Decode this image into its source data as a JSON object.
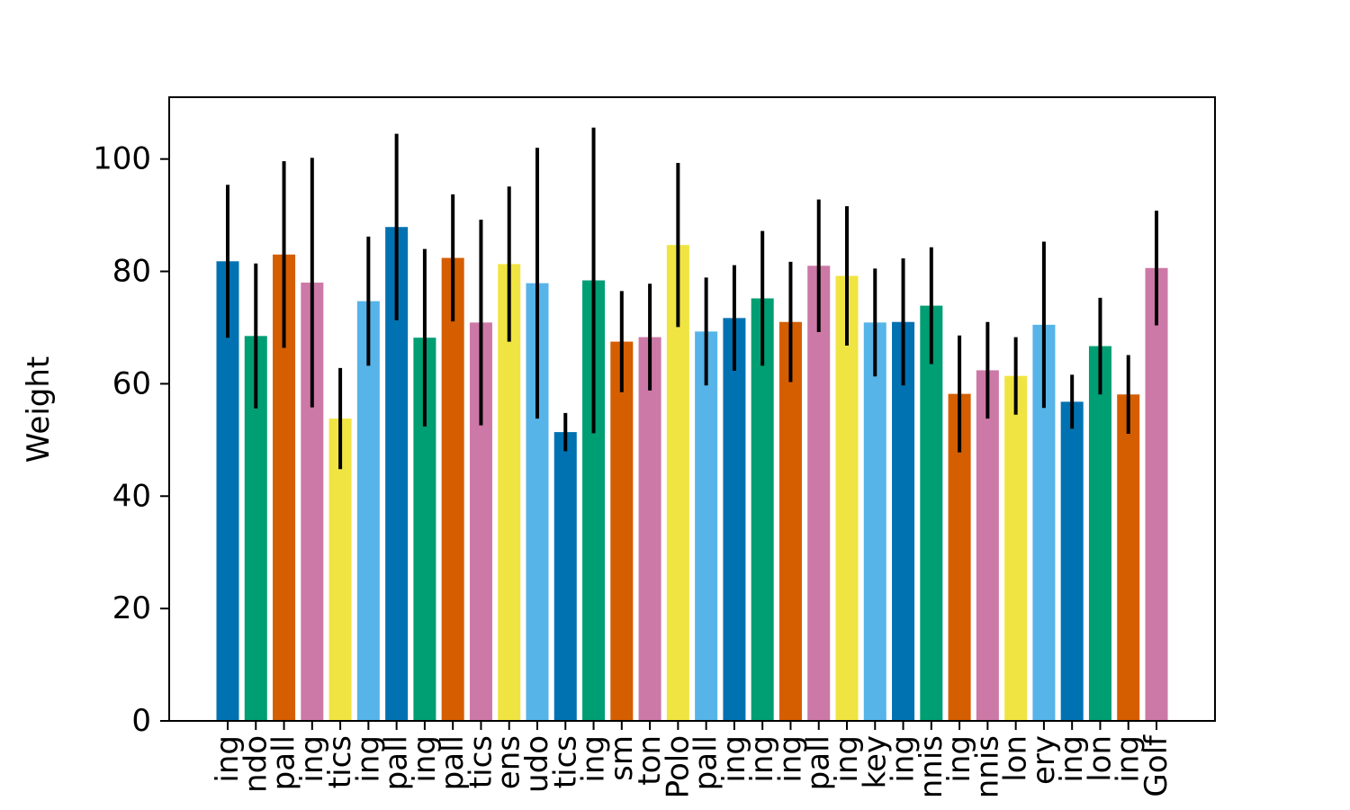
{
  "chart_data": {
    "type": "bar",
    "title": "",
    "xlabel": "",
    "ylabel": "Weight",
    "ylim": [
      0,
      111
    ],
    "yticks": [
      0,
      20,
      40,
      60,
      80,
      100
    ],
    "grid": false,
    "legend": "none",
    "categories": [
      "ing",
      "ndo",
      "pall",
      "ing",
      "tics",
      "ing",
      "pall",
      "ing",
      "pall",
      "tics",
      "ens",
      "udo",
      "tics",
      "ing",
      "sm",
      "ton",
      "Polo",
      "pall",
      "ing",
      "ing",
      "ing",
      "pall",
      "ing",
      "key",
      "ing",
      "nnis",
      "ing",
      "nnis",
      "lon",
      "ery",
      "ing",
      "lon",
      "ing",
      "Golf"
    ],
    "values": [
      81.8,
      68.5,
      83.0,
      78.0,
      53.8,
      74.7,
      87.9,
      68.2,
      82.4,
      70.9,
      81.3,
      77.9,
      51.4,
      78.4,
      67.5,
      68.3,
      84.7,
      69.3,
      71.7,
      75.2,
      71.0,
      81.0,
      79.2,
      70.9,
      71.0,
      73.9,
      58.2,
      62.4,
      61.4,
      70.5,
      56.8,
      66.7,
      58.1,
      80.6
    ],
    "errors": [
      13.6,
      12.9,
      16.6,
      22.2,
      9.0,
      11.5,
      16.6,
      15.8,
      11.3,
      18.3,
      13.8,
      24.1,
      3.4,
      27.2,
      9.0,
      9.5,
      14.6,
      9.6,
      9.4,
      12.0,
      10.7,
      11.8,
      12.4,
      9.6,
      11.3,
      10.4,
      10.4,
      8.6,
      6.9,
      14.8,
      4.8,
      8.6,
      7.0,
      10.2
    ],
    "colors": [
      "#0072b2",
      "#009e73",
      "#d55e00",
      "#cc79a7",
      "#f0e442",
      "#56b4e9"
    ],
    "error_color": "#000000"
  }
}
